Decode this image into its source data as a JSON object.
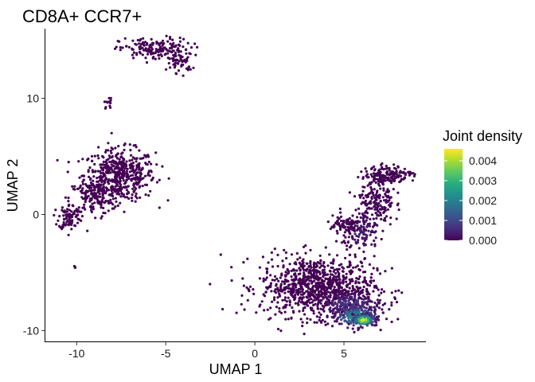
{
  "chart_data": {
    "type": "scatter",
    "title": "CD8A+ CCR7+",
    "xlabel": "UMAP 1",
    "ylabel": "UMAP 2",
    "xlim": [
      -11.8,
      9.6
    ],
    "ylim": [
      -11.0,
      16.0
    ],
    "x_ticks": [
      -10,
      -5,
      0,
      5
    ],
    "x_tick_labels": [
      "-10",
      "-5",
      "0",
      "5"
    ],
    "y_ticks": [
      -10,
      0,
      10
    ],
    "y_tick_labels": [
      "-10",
      "0",
      "10"
    ],
    "grid": false,
    "legend": {
      "title": "Joint density",
      "placement": "right",
      "range": [
        0.0,
        0.0046
      ],
      "ticks": [
        0.0,
        0.001,
        0.002,
        0.003,
        0.004
      ],
      "tick_labels": [
        "0.000",
        "0.001",
        "0.002",
        "0.003",
        "0.004"
      ],
      "colormap": "viridis",
      "colors": [
        "#440154",
        "#472d7b",
        "#3b528b",
        "#2c728e",
        "#21918c",
        "#28ae80",
        "#5ec962",
        "#addc30",
        "#fde725"
      ]
    },
    "clusters": [
      {
        "cx": -7.6,
        "cy": 3.4,
        "sx": 1.0,
        "sy": 1.1,
        "n": 500,
        "density": 0.0
      },
      {
        "cx": -9.0,
        "cy": 1.4,
        "sx": 0.7,
        "sy": 0.7,
        "n": 140,
        "density": 0.0
      },
      {
        "cx": -10.4,
        "cy": -0.2,
        "sx": 0.3,
        "sy": 0.55,
        "n": 90,
        "density": 0.0
      },
      {
        "cx": -5.6,
        "cy": 14.2,
        "sx": 1.0,
        "sy": 0.5,
        "n": 180,
        "density": 0.0
      },
      {
        "cx": -4.2,
        "cy": 13.0,
        "sx": 0.35,
        "sy": 0.4,
        "n": 40,
        "density": 0.0
      },
      {
        "cx": -8.2,
        "cy": 9.6,
        "sx": 0.12,
        "sy": 0.25,
        "n": 12,
        "density": 0.0
      },
      {
        "cx": -10.1,
        "cy": -4.5,
        "sx": 0.05,
        "sy": 0.05,
        "n": 3,
        "density": 0.0
      },
      {
        "cx": 3.5,
        "cy": -6.2,
        "sx": 1.6,
        "sy": 1.3,
        "n": 900,
        "density": 0.0
      },
      {
        "cx": 5.3,
        "cy": -7.8,
        "sx": 0.9,
        "sy": 0.6,
        "n": 220,
        "density": 0.0007
      },
      {
        "cx": 5.7,
        "cy": -8.8,
        "sx": 0.6,
        "sy": 0.45,
        "n": 200,
        "density": 0.0025
      },
      {
        "cx": 6.1,
        "cy": -9.1,
        "sx": 0.3,
        "sy": 0.25,
        "n": 120,
        "density": 0.0045
      },
      {
        "cx": 7.4,
        "cy": 3.4,
        "sx": 0.6,
        "sy": 0.4,
        "n": 160,
        "density": 0.0
      },
      {
        "cx": 6.8,
        "cy": 1.0,
        "sx": 0.5,
        "sy": 1.0,
        "n": 170,
        "density": 0.0001
      },
      {
        "cx": 6.0,
        "cy": -1.6,
        "sx": 0.5,
        "sy": 0.8,
        "n": 120,
        "density": 0.0004
      },
      {
        "cx": 5.0,
        "cy": -1.0,
        "sx": 0.5,
        "sy": 0.45,
        "n": 70,
        "density": 0.0
      },
      {
        "cx": 8.6,
        "cy": 3.6,
        "sx": 0.25,
        "sy": 0.1,
        "n": 12,
        "density": 0.0
      }
    ]
  }
}
